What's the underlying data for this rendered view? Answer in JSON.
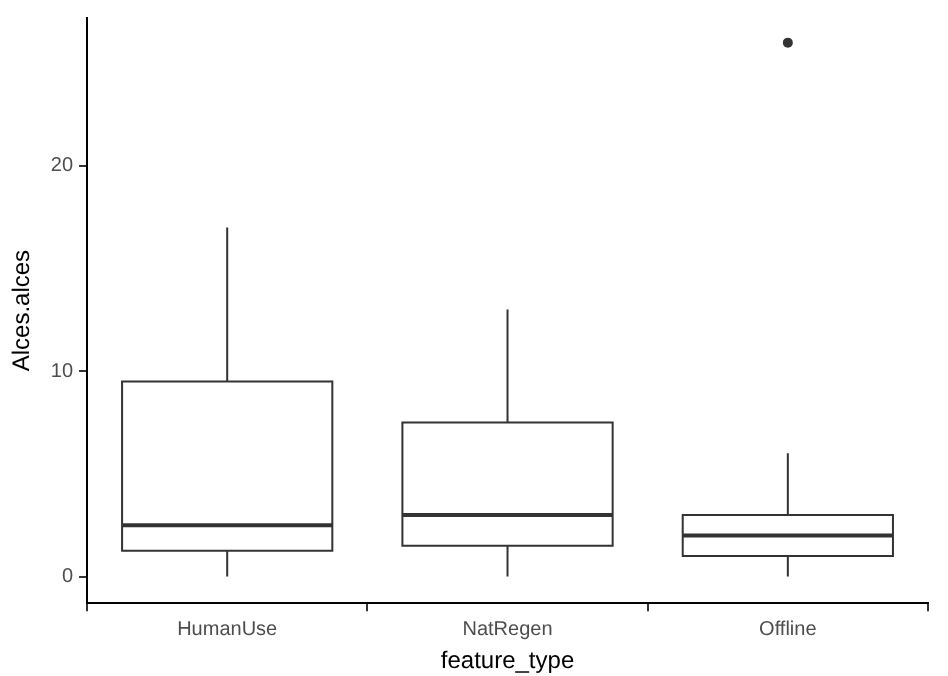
{
  "chart_data": {
    "type": "box",
    "xlabel": "feature_type",
    "ylabel": "Alces.alces",
    "categories": [
      "HumanUse",
      "NatRegen",
      "Offline"
    ],
    "boxes": [
      {
        "low": 0,
        "q1": 1.25,
        "median": 2.5,
        "q3": 9.5,
        "high": 17
      },
      {
        "low": 0,
        "q1": 1.5,
        "median": 3,
        "q3": 7.5,
        "high": 13
      },
      {
        "low": 0,
        "q1": 1,
        "median": 2,
        "q3": 3,
        "high": 6,
        "outliers": [
          26
        ]
      }
    ],
    "color": "#333333",
    "ylim": [
      -1.3,
      27.2
    ],
    "yticks": [
      0,
      10,
      20
    ],
    "grid": false,
    "legend": false
  }
}
